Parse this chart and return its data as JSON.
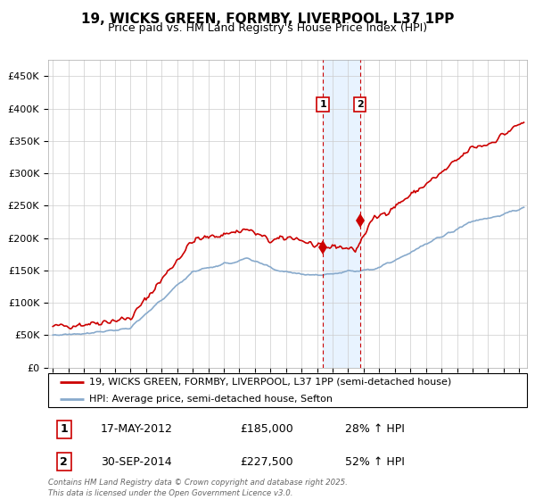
{
  "title_line1": "19, WICKS GREEN, FORMBY, LIVERPOOL, L37 1PP",
  "title_line2": "Price paid vs. HM Land Registry's House Price Index (HPI)",
  "background_color": "#ffffff",
  "plot_bg_color": "#ffffff",
  "grid_color": "#cccccc",
  "red_line_color": "#cc0000",
  "blue_line_color": "#88aacc",
  "highlight_fill_color": "#ddeeff",
  "vline_color": "#cc0000",
  "transaction1_date_num": 2012.37,
  "transaction1_value": 185000,
  "transaction2_date_num": 2014.75,
  "transaction2_value": 227500,
  "legend_line1": "19, WICKS GREEN, FORMBY, LIVERPOOL, L37 1PP (semi-detached house)",
  "legend_line2": "HPI: Average price, semi-detached house, Sefton",
  "annotation1_date": "17-MAY-2012",
  "annotation1_price": "£185,000",
  "annotation1_hpi": "28% ↑ HPI",
  "annotation2_date": "30-SEP-2014",
  "annotation2_price": "£227,500",
  "annotation2_hpi": "52% ↑ HPI",
  "footer_text": "Contains HM Land Registry data © Crown copyright and database right 2025.\nThis data is licensed under the Open Government Licence v3.0.",
  "ylim": [
    0,
    475000
  ],
  "xlim_start": 1994.7,
  "xlim_end": 2025.5,
  "yticks": [
    0,
    50000,
    100000,
    150000,
    200000,
    250000,
    300000,
    350000,
    400000,
    450000
  ],
  "ylabels": [
    "£0",
    "£50K",
    "£100K",
    "£150K",
    "£200K",
    "£250K",
    "£300K",
    "£350K",
    "£400K",
    "£450K"
  ]
}
